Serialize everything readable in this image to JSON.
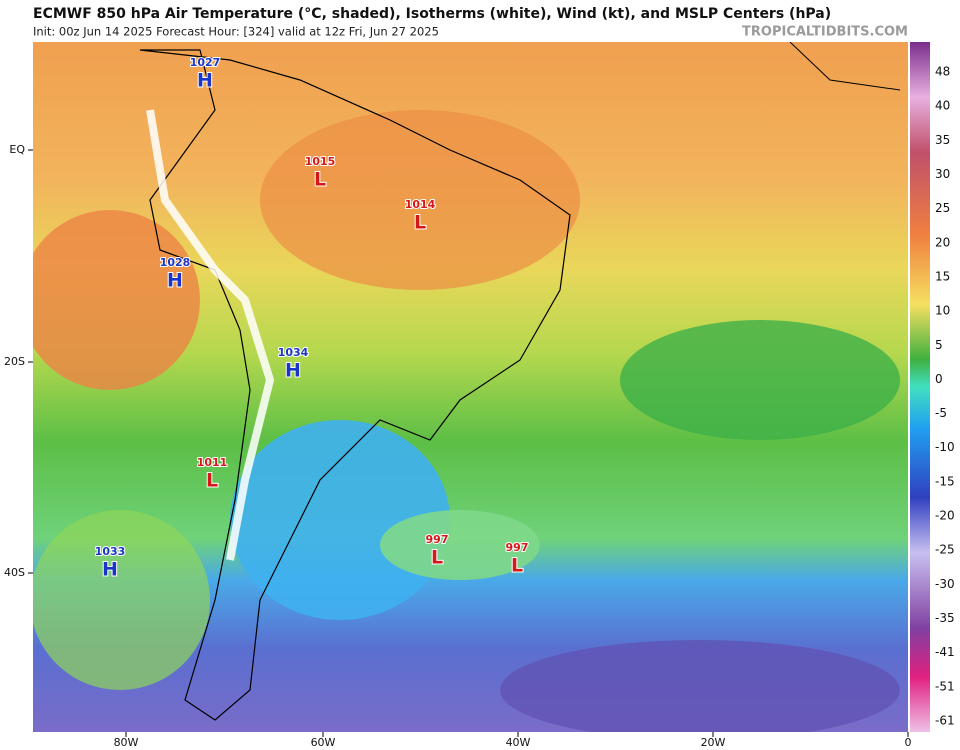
{
  "header": {
    "title": "ECMWF 850 hPa Air Temperature (°C, shaded), Isotherms (white), Wind (kt), and MSLP Centers (hPa)",
    "subtitle": "Init: 00z Jun 14 2025   Forecast Hour: [324]   valid at 12z Fri, Jun 27 2025",
    "watermark": "TROPICALTIDBITS.COM"
  },
  "latitudes": [
    "EQ",
    "20S",
    "40S"
  ],
  "longitudes": [
    "80W",
    "60W",
    "40W",
    "20W",
    "0"
  ],
  "colorbar": {
    "ticks": [
      48,
      40,
      35,
      30,
      25,
      20,
      15,
      10,
      5,
      0,
      -5,
      -10,
      -15,
      -20,
      -25,
      -30,
      -35,
      -41,
      -51,
      -61
    ]
  },
  "centers": [
    {
      "pressure": 1027,
      "kind": "H"
    },
    {
      "pressure": 1015,
      "kind": "L"
    },
    {
      "pressure": 1014,
      "kind": "L"
    },
    {
      "pressure": 1028,
      "kind": "H"
    },
    {
      "pressure": 1034,
      "kind": "H"
    },
    {
      "pressure": 1011,
      "kind": "L"
    },
    {
      "pressure": 1033,
      "kind": "H"
    },
    {
      "pressure": 997,
      "kind": "L"
    },
    {
      "pressure": 997,
      "kind": "L"
    }
  ]
}
